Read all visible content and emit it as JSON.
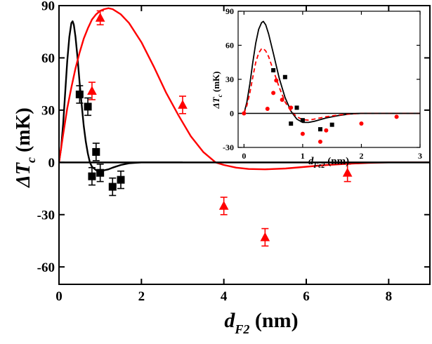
{
  "chart_data": [
    {
      "id": "main",
      "type": "scatter",
      "xlabel": {
        "symbol": "d",
        "sub": "F2",
        "unit": " (nm)"
      },
      "ylabel": {
        "symbol": "ΔT",
        "sub": "c",
        "unit": " (mK)"
      },
      "xlim": [
        0,
        9
      ],
      "ylim": [
        -70,
        90
      ],
      "xticks": [
        0,
        2,
        4,
        6,
        8
      ],
      "xtick_labels": [
        "0",
        "2",
        "4",
        "6",
        "8"
      ],
      "yticks": [
        -60,
        -30,
        0,
        30,
        60,
        90
      ],
      "ytick_labels": [
        "-60",
        "-30",
        "0",
        "30",
        "60",
        "90"
      ],
      "zero_line": true,
      "series": [
        {
          "name": "black squares",
          "marker": "square",
          "color": "#000000",
          "points": [
            {
              "x": 0.5,
              "y": 39,
              "err": 5
            },
            {
              "x": 0.7,
              "y": 32,
              "err": 5
            },
            {
              "x": 0.8,
              "y": -8,
              "err": 5
            },
            {
              "x": 0.9,
              "y": 6,
              "err": 5
            },
            {
              "x": 1.0,
              "y": -6,
              "err": 5
            },
            {
              "x": 1.3,
              "y": -14,
              "err": 5
            },
            {
              "x": 1.5,
              "y": -10,
              "err": 5
            }
          ]
        },
        {
          "name": "red triangles",
          "marker": "triangle",
          "color": "#ff0000",
          "points": [
            {
              "x": 0.8,
              "y": 41,
              "err": 5
            },
            {
              "x": 1.0,
              "y": 83,
              "err": 4
            },
            {
              "x": 3.0,
              "y": 33,
              "err": 5
            },
            {
              "x": 4.0,
              "y": -25,
              "err": 5
            },
            {
              "x": 5.0,
              "y": -43,
              "err": 5
            },
            {
              "x": 7.0,
              "y": -6,
              "err": 5
            }
          ]
        }
      ],
      "curves": [
        {
          "name": "black fit",
          "color": "#000000",
          "points": [
            [
              0,
              0
            ],
            [
              0.05,
              8
            ],
            [
              0.1,
              22
            ],
            [
              0.15,
              40
            ],
            [
              0.2,
              58
            ],
            [
              0.25,
              72
            ],
            [
              0.3,
              80
            ],
            [
              0.33,
              81
            ],
            [
              0.36,
              79
            ],
            [
              0.4,
              72
            ],
            [
              0.45,
              60
            ],
            [
              0.5,
              46
            ],
            [
              0.55,
              33
            ],
            [
              0.6,
              21
            ],
            [
              0.65,
              12
            ],
            [
              0.7,
              5
            ],
            [
              0.75,
              0
            ],
            [
              0.8,
              -2.5
            ],
            [
              0.9,
              -4.5
            ],
            [
              1.0,
              -5
            ],
            [
              1.1,
              -4.5
            ],
            [
              1.2,
              -4
            ],
            [
              1.3,
              -3
            ],
            [
              1.5,
              -1.5
            ],
            [
              1.7,
              -0.5
            ],
            [
              2.0,
              0
            ],
            [
              2.5,
              0
            ],
            [
              3.0,
              0
            ]
          ]
        },
        {
          "name": "red fit",
          "color": "#ff0000",
          "points": [
            [
              0,
              0
            ],
            [
              0.1,
              16
            ],
            [
              0.2,
              31
            ],
            [
              0.3,
              43
            ],
            [
              0.4,
              54
            ],
            [
              0.5,
              63
            ],
            [
              0.6,
              71
            ],
            [
              0.7,
              77
            ],
            [
              0.8,
              82
            ],
            [
              0.9,
              85
            ],
            [
              1.0,
              87
            ],
            [
              1.1,
              88
            ],
            [
              1.2,
              88.5
            ],
            [
              1.3,
              88
            ],
            [
              1.5,
              85
            ],
            [
              1.7,
              80
            ],
            [
              2.0,
              69
            ],
            [
              2.3,
              55
            ],
            [
              2.6,
              40
            ],
            [
              2.9,
              27
            ],
            [
              3.2,
              15
            ],
            [
              3.5,
              6
            ],
            [
              3.8,
              0
            ],
            [
              4.0,
              -1.5
            ],
            [
              4.3,
              -3
            ],
            [
              4.6,
              -3.8
            ],
            [
              5.0,
              -4
            ],
            [
              5.5,
              -3.5
            ],
            [
              6.0,
              -2.5
            ],
            [
              6.5,
              -1.5
            ],
            [
              7.0,
              -0.8
            ],
            [
              7.5,
              -0.3
            ],
            [
              8.0,
              0
            ],
            [
              9.0,
              0
            ]
          ]
        }
      ]
    },
    {
      "id": "inset",
      "type": "scatter",
      "xlabel": {
        "symbol": "d",
        "sub": "Fe2",
        "unit": " (nm)"
      },
      "ylabel": {
        "symbol": "ΔT",
        "sub": "c",
        "unit": " (mK)"
      },
      "xlim": [
        -0.1,
        3
      ],
      "ylim": [
        -30,
        90
      ],
      "xticks": [
        0,
        1,
        2,
        3
      ],
      "xtick_labels": [
        "0",
        "1",
        "2",
        "3"
      ],
      "yticks": [
        -30,
        0,
        30,
        60,
        90
      ],
      "ytick_labels": [
        "-30",
        "0",
        "30",
        "60",
        "90"
      ],
      "zero_line": true,
      "series": [
        {
          "name": "black squares",
          "marker": "square",
          "color": "#000000",
          "points": [
            {
              "x": 0.5,
              "y": 38
            },
            {
              "x": 0.7,
              "y": 32
            },
            {
              "x": 0.8,
              "y": -9
            },
            {
              "x": 0.9,
              "y": 5
            },
            {
              "x": 1.0,
              "y": -6
            },
            {
              "x": 1.3,
              "y": -14
            },
            {
              "x": 1.5,
              "y": -10
            }
          ]
        },
        {
          "name": "red circles",
          "marker": "circle",
          "color": "#ff0000",
          "points": [
            {
              "x": 0.0,
              "y": 0
            },
            {
              "x": 0.4,
              "y": 4
            },
            {
              "x": 0.5,
              "y": 18
            },
            {
              "x": 0.55,
              "y": 29
            },
            {
              "x": 0.65,
              "y": 12
            },
            {
              "x": 0.8,
              "y": 5
            },
            {
              "x": 1.0,
              "y": -18
            },
            {
              "x": 1.3,
              "y": -25
            },
            {
              "x": 1.4,
              "y": -15
            },
            {
              "x": 2.0,
              "y": -9
            },
            {
              "x": 2.6,
              "y": -3
            }
          ]
        }
      ],
      "curves": [
        {
          "name": "black fit",
          "color": "#000000",
          "dashed": false,
          "points": [
            [
              0,
              0
            ],
            [
              0.05,
              10
            ],
            [
              0.1,
              26
            ],
            [
              0.15,
              45
            ],
            [
              0.2,
              62
            ],
            [
              0.25,
              74
            ],
            [
              0.3,
              80
            ],
            [
              0.33,
              81
            ],
            [
              0.37,
              78
            ],
            [
              0.42,
              70
            ],
            [
              0.5,
              53
            ],
            [
              0.6,
              31
            ],
            [
              0.7,
              14
            ],
            [
              0.8,
              2
            ],
            [
              0.9,
              -5
            ],
            [
              1.0,
              -8
            ],
            [
              1.1,
              -8
            ],
            [
              1.2,
              -7
            ],
            [
              1.4,
              -4
            ],
            [
              1.6,
              -2
            ],
            [
              1.8,
              -0.5
            ],
            [
              2.0,
              0
            ],
            [
              3.0,
              0
            ]
          ]
        },
        {
          "name": "red fit",
          "color": "#ff0000",
          "dashed": true,
          "points": [
            [
              0,
              0
            ],
            [
              0.05,
              7
            ],
            [
              0.1,
              18
            ],
            [
              0.15,
              32
            ],
            [
              0.2,
              45
            ],
            [
              0.25,
              53
            ],
            [
              0.3,
              57
            ],
            [
              0.33,
              57
            ],
            [
              0.37,
              55
            ],
            [
              0.42,
              50
            ],
            [
              0.5,
              38
            ],
            [
              0.6,
              23
            ],
            [
              0.7,
              10
            ],
            [
              0.8,
              2
            ],
            [
              0.9,
              -3
            ],
            [
              1.0,
              -5.5
            ],
            [
              1.1,
              -6
            ],
            [
              1.2,
              -5
            ],
            [
              1.4,
              -3
            ],
            [
              1.6,
              -1.5
            ],
            [
              1.8,
              -0.5
            ],
            [
              2.0,
              0
            ],
            [
              3.0,
              0
            ]
          ]
        }
      ]
    }
  ]
}
